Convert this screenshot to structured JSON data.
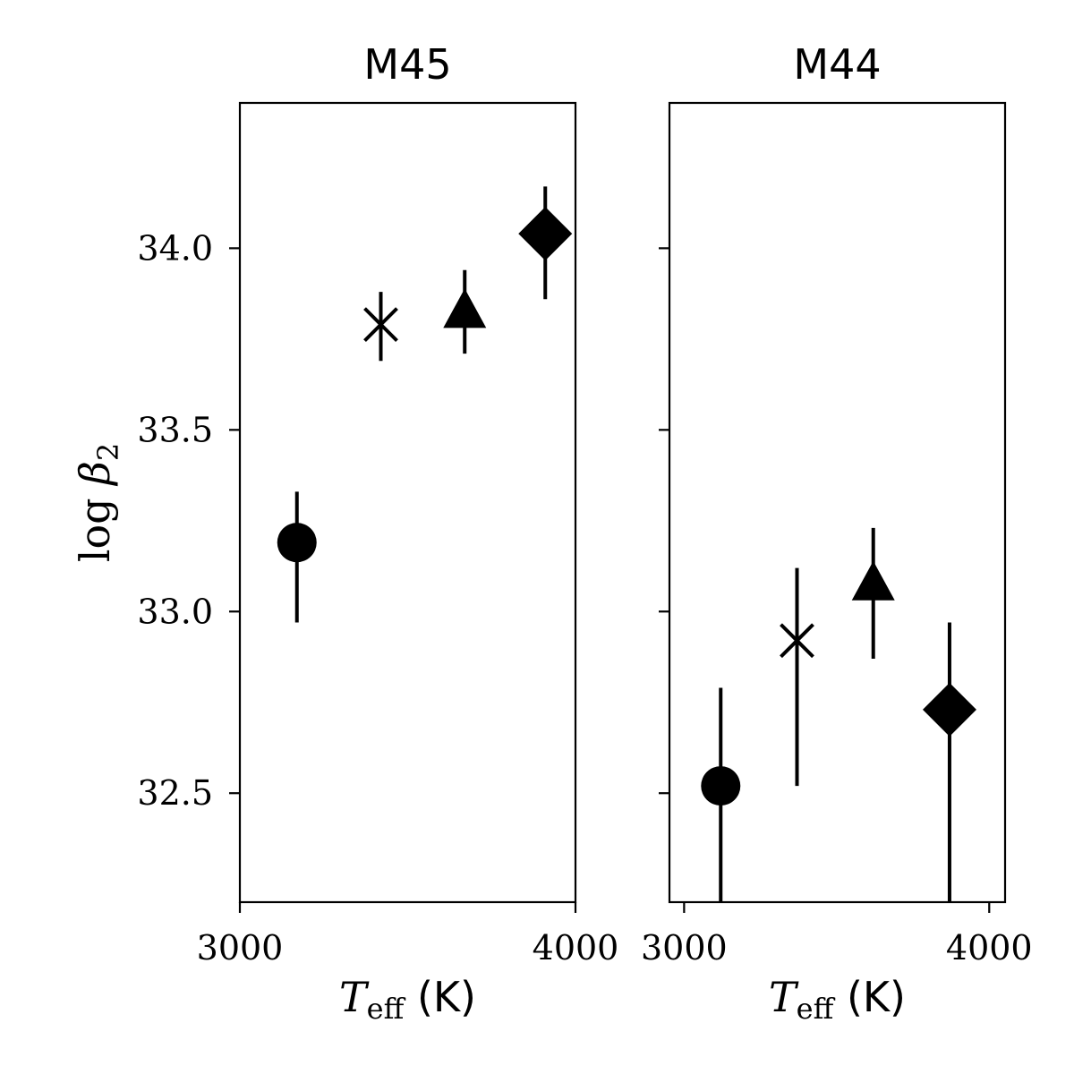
{
  "chart_data": [
    {
      "type": "scatter",
      "title": "M45",
      "xlabel_var": "T",
      "xlabel_sub": "eff",
      "xlabel_unit": " (K)",
      "ylabel_fn": "log",
      "ylabel_var": "β",
      "ylabel_sub": "2",
      "xlim": [
        3000,
        4000
      ],
      "ylim": [
        32.2,
        34.4
      ],
      "xticks": [
        3000,
        4000
      ],
      "yticks": [
        32.5,
        33.0,
        33.5,
        34.0
      ],
      "xtick_labels": [
        "3000",
        "4000"
      ],
      "ytick_labels": [
        "32.5",
        "33.0",
        "33.5",
        "34.0"
      ],
      "points": [
        {
          "marker": "circle",
          "x": 3170,
          "y": 33.19,
          "y_low": 32.97,
          "y_high": 33.33
        },
        {
          "marker": "x",
          "x": 3420,
          "y": 33.79,
          "y_low": 33.69,
          "y_high": 33.88
        },
        {
          "marker": "triangle",
          "x": 3670,
          "y": 33.83,
          "y_low": 33.71,
          "y_high": 33.94
        },
        {
          "marker": "diamond",
          "x": 3910,
          "y": 34.04,
          "y_low": 33.86,
          "y_high": 34.17
        }
      ]
    },
    {
      "type": "scatter",
      "title": "M44",
      "xlabel_var": "T",
      "xlabel_sub": "eff",
      "xlabel_unit": " (K)",
      "xlim": [
        2952,
        4052
      ],
      "ylim": [
        32.2,
        34.4
      ],
      "xticks": [
        3000,
        4000
      ],
      "yticks": [
        32.5,
        33.0,
        33.5,
        34.0
      ],
      "xtick_labels": [
        "3000",
        "4000"
      ],
      "ytick_labels": [],
      "points": [
        {
          "marker": "circle",
          "x": 3120,
          "y": 32.52,
          "y_low": 32.2,
          "y_high": 32.79
        },
        {
          "marker": "x",
          "x": 3370,
          "y": 32.92,
          "y_low": 32.52,
          "y_high": 33.12
        },
        {
          "marker": "triangle",
          "x": 3620,
          "y": 33.08,
          "y_low": 32.87,
          "y_high": 33.23
        },
        {
          "marker": "diamond",
          "x": 3870,
          "y": 32.73,
          "y_low": 32.2,
          "y_high": 32.97
        }
      ]
    }
  ]
}
